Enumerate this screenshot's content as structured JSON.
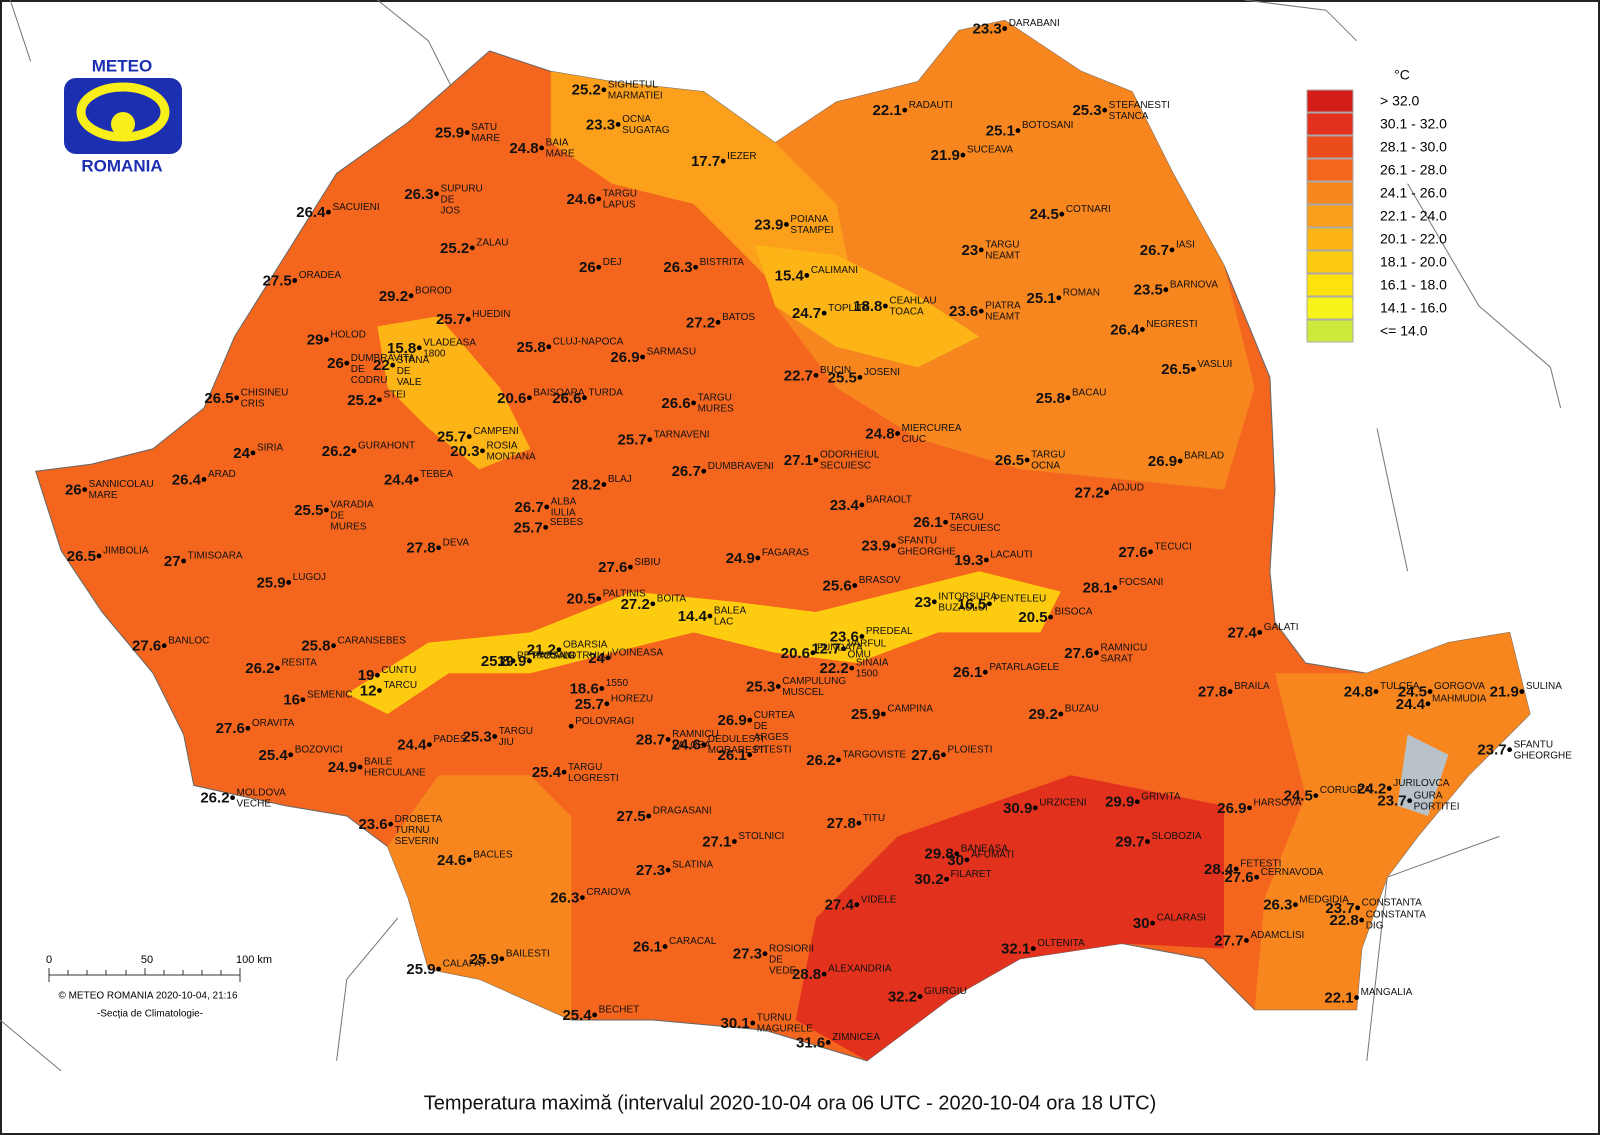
{
  "logo": {
    "top": "METEO",
    "bottom": "ROMANIA"
  },
  "legend": {
    "unit": "°C",
    "items": [
      {
        "label": "> 32.0",
        "color": "#d41c18"
      },
      {
        "label": "30.1 - 32.0",
        "color": "#e2311c"
      },
      {
        "label": "28.1 - 30.0",
        "color": "#ec4b1b"
      },
      {
        "label": "26.1 - 28.0",
        "color": "#f4661e"
      },
      {
        "label": "24.1 - 26.0",
        "color": "#f7861e"
      },
      {
        "label": "22.1 - 24.0",
        "color": "#fa9f1b"
      },
      {
        "label": "20.1 - 22.0",
        "color": "#fcb416"
      },
      {
        "label": "18.1 - 20.0",
        "color": "#fdcb10"
      },
      {
        "label": "16.1 - 18.0",
        "color": "#fde20b"
      },
      {
        "label": "14.1 - 16.0",
        "color": "#f8f41a"
      },
      {
        "label": "<= 14.0",
        "color": "#cbea3c"
      }
    ]
  },
  "scale_bar": {
    "labels": [
      "0",
      "50",
      "100 km"
    ]
  },
  "credit": {
    "line1": "© METEO ROMANIA 2020-10-04, 21:16",
    "line2": "-Secția de Climatologie-"
  },
  "title": "Temperatura maximă (intervalul 2020-10-04 ora 06 UTC - 2020-10-04 ora 18 UTC)",
  "stations": [
    {
      "name": [
        "DARABANI"
      ],
      "value": 23.3
    },
    {
      "name": [
        "SIGHETUL",
        "MARMATIEI"
      ],
      "value": 25.2
    },
    {
      "name": [
        "STEFANESTI",
        "STANCA"
      ],
      "value": 25.3
    },
    {
      "name": [
        "RADAUTI"
      ],
      "value": 22.1
    },
    {
      "name": [
        "SATU",
        "MARE"
      ],
      "value": 25.9
    },
    {
      "name": [
        "OCNA",
        "SUGATAG"
      ],
      "value": 23.3
    },
    {
      "name": [
        "BAIA",
        "MARE"
      ],
      "value": 24.8
    },
    {
      "name": [
        "BOTOSANI"
      ],
      "value": 25.1
    },
    {
      "name": [
        "IEZER"
      ],
      "value": 17.7
    },
    {
      "name": [
        "SUCEAVA"
      ],
      "value": 21.9
    },
    {
      "name": [
        "SUPURU",
        "DE",
        "JOS"
      ],
      "value": 26.3
    },
    {
      "name": [
        "TARGU",
        "LAPUS"
      ],
      "value": 24.6
    },
    {
      "name": [
        "SACUIENI"
      ],
      "value": 26.4
    },
    {
      "name": [
        "POIANA",
        "STAMPEI"
      ],
      "value": 23.9
    },
    {
      "name": [
        "COTNARI"
      ],
      "value": 24.5
    },
    {
      "name": [
        "ZALAU"
      ],
      "value": 25.2
    },
    {
      "name": [
        "DEJ"
      ],
      "value": 26
    },
    {
      "name": [
        "BISTRITA"
      ],
      "value": 26.3
    },
    {
      "name": [
        "TARGU",
        "NEAMT"
      ],
      "value": 23
    },
    {
      "name": [
        "IASI"
      ],
      "value": 26.7
    },
    {
      "name": [
        "ORADEA"
      ],
      "value": 27.5
    },
    {
      "name": [
        "CALIMANI"
      ],
      "value": 15.4
    },
    {
      "name": [
        "BOROD"
      ],
      "value": 29.2
    },
    {
      "name": [
        "BARNOVA"
      ],
      "value": 23.5
    },
    {
      "name": [
        "CEAHLAU",
        "TOACA"
      ],
      "value": 18.8
    },
    {
      "name": [
        "PIATRA",
        "NEAMT"
      ],
      "value": 23.6
    },
    {
      "name": [
        "ROMAN"
      ],
      "value": 25.1
    },
    {
      "name": [
        "HUEDIN"
      ],
      "value": 25.7
    },
    {
      "name": [
        "TOPLITA"
      ],
      "value": 24.7
    },
    {
      "name": [
        "BATOS"
      ],
      "value": 27.2
    },
    {
      "name": [
        "VLADEASA",
        "1800"
      ],
      "value": 15.8
    },
    {
      "name": [
        "HOLOD"
      ],
      "value": 29
    },
    {
      "name": [
        "NEGRESTI"
      ],
      "value": 26.4
    },
    {
      "name": [
        "CLUJ-NAPOCA"
      ],
      "value": 25.8
    },
    {
      "name": [
        "DUMBRAVITA",
        "DE",
        "CODRU"
      ],
      "value": 26
    },
    {
      "name": [
        "STANA",
        "DE",
        "VALE"
      ],
      "value": 22
    },
    {
      "name": [
        "SARMASU"
      ],
      "value": 26.9
    },
    {
      "name": [
        "BUCIN"
      ],
      "value": 22.7
    },
    {
      "name": [
        "JOSENI"
      ],
      "value": 25.5
    },
    {
      "name": [
        "VASLUI"
      ],
      "value": 26.5
    },
    {
      "name": [
        "CHISINEU",
        "CRIS"
      ],
      "value": 26.5
    },
    {
      "name": [
        "STEI"
      ],
      "value": 25.2
    },
    {
      "name": [
        "BAISOARA"
      ],
      "value": 20.6
    },
    {
      "name": [
        "TURDA"
      ],
      "value": 26.6
    },
    {
      "name": [
        "TARGU",
        "MURES"
      ],
      "value": 26.6
    },
    {
      "name": [
        "BACAU"
      ],
      "value": 25.8
    },
    {
      "name": [
        "SIRIA"
      ],
      "value": 24
    },
    {
      "name": [
        "GURAHONT"
      ],
      "value": 26.2
    },
    {
      "name": [
        "CAMPENI"
      ],
      "value": 25.7
    },
    {
      "name": [
        "ROSIA",
        "MONTANA"
      ],
      "value": 20.3
    },
    {
      "name": [
        "TARNAVENI"
      ],
      "value": 25.7
    },
    {
      "name": [
        "MIERCUREA",
        "CIUC"
      ],
      "value": 24.8
    },
    {
      "name": [
        "ODORHEIUL",
        "SECUIESC"
      ],
      "value": 27.1
    },
    {
      "name": [
        "TARGU",
        "OCNA"
      ],
      "value": 26.5
    },
    {
      "name": [
        "BARLAD"
      ],
      "value": 26.9
    },
    {
      "name": [
        "SANNICOLAU",
        "MARE"
      ],
      "value": 26
    },
    {
      "name": [
        "ARAD"
      ],
      "value": 26.4
    },
    {
      "name": [
        "TEBEA"
      ],
      "value": 24.4
    },
    {
      "name": [
        "DUMBRAVENI"
      ],
      "value": 26.7
    },
    {
      "name": [
        "BLAJ"
      ],
      "value": 28.2
    },
    {
      "name": [
        "ADJUD"
      ],
      "value": 27.2
    },
    {
      "name": [
        "VARADIA",
        "DE",
        "MURES"
      ],
      "value": 25.5
    },
    {
      "name": [
        "ALBA",
        "IULIA"
      ],
      "value": 26.7
    },
    {
      "name": [
        "SEBES"
      ],
      "value": 25.7
    },
    {
      "name": [
        "BARAOLT"
      ],
      "value": 23.4
    },
    {
      "name": [
        "TARGU",
        "SECUIESC"
      ],
      "value": 26.1
    },
    {
      "name": [
        "JIMBOLIA"
      ],
      "value": 26.5
    },
    {
      "name": [
        "TIMISOARA"
      ],
      "value": 27
    },
    {
      "name": [
        "DEVA"
      ],
      "value": 27.8
    },
    {
      "name": [
        "SFANTU",
        "GHEORGHE"
      ],
      "value": 23.9
    },
    {
      "name": [
        "TECUCI"
      ],
      "value": 27.6
    },
    {
      "name": [
        "SIBIU"
      ],
      "value": 27.6
    },
    {
      "name": [
        "FAGARAS"
      ],
      "value": 24.9
    },
    {
      "name": [
        "LACAUTI"
      ],
      "value": 19.3
    },
    {
      "name": [
        "LUGOJ"
      ],
      "value": 25.9
    },
    {
      "name": [
        "BRASOV"
      ],
      "value": 25.6
    },
    {
      "name": [
        "FOCSANI"
      ],
      "value": 28.1
    },
    {
      "name": [
        "PALTINIS"
      ],
      "value": 20.5
    },
    {
      "name": [
        "BOITA"
      ],
      "value": 27.2
    },
    {
      "name": [
        "BALEA",
        "LAC"
      ],
      "value": 14.4
    },
    {
      "name": [
        "INTORSURA",
        "BUZAULUI"
      ],
      "value": 23
    },
    {
      "name": [
        "PENTELEU"
      ],
      "value": 16.5
    },
    {
      "name": [
        "BISOCA"
      ],
      "value": 20.5
    },
    {
      "name": [
        "CARANSEBES"
      ],
      "value": 25.8
    },
    {
      "name": [
        "BANLOC"
      ],
      "value": 27.6
    },
    {
      "name": [
        "OBARSIA",
        "LOTRULUI"
      ],
      "value": 21.2
    },
    {
      "name": [
        "PETROSANI"
      ],
      "value": 25.8
    },
    {
      "name": [
        "PARANG"
      ],
      "value": 19.9
    },
    {
      "name": [
        "VOINEASA"
      ],
      "value": 24
    },
    {
      "name": [
        "VARFUL",
        "OMU"
      ],
      "value": 12.7
    },
    {
      "name": [
        "PREDEAL"
      ],
      "value": 23.6
    },
    {
      "name": [
        "FUNDATA"
      ],
      "value": 20.6
    },
    {
      "name": [
        "SINAIA",
        "1500"
      ],
      "value": 22.2
    },
    {
      "name": [
        "RESITA"
      ],
      "value": 26.2
    },
    {
      "name": [
        "PATARLAGELE"
      ],
      "value": 26.1
    },
    {
      "name": [
        "RAMNICU",
        "SARAT"
      ],
      "value": 27.6
    },
    {
      "name": [
        "GALATI"
      ],
      "value": 27.4
    },
    {
      "name": [
        "CUNTU"
      ],
      "value": 19
    },
    {
      "name": [
        "TARCU"
      ],
      "value": 12
    },
    {
      "name": [
        "SEMENIC"
      ],
      "value": 16
    },
    {
      "name": [
        "1550"
      ],
      "value": 18.6
    },
    {
      "name": [
        "HOREZU"
      ],
      "value": 25.7
    },
    {
      "name": [
        "CAMPULUNG",
        "MUSCEL"
      ],
      "value": 25.3
    },
    {
      "name": [
        "CURTEA",
        "DE",
        "ARGES"
      ],
      "value": 26.9
    },
    {
      "name": [
        "TULCEA"
      ],
      "value": 24.8
    },
    {
      "name": [
        "GORGOVA"
      ],
      "value": 24.5
    },
    {
      "name": [
        "MAHMUDIA"
      ],
      "value": 24.4
    },
    {
      "name": [
        "SULINA"
      ],
      "value": 21.9
    },
    {
      "name": [
        "BRAILA"
      ],
      "value": 27.8
    },
    {
      "name": [
        "BUZAU"
      ],
      "value": 29.2
    },
    {
      "name": [
        "ORAVITA"
      ],
      "value": 27.6
    },
    {
      "name": [
        "CAMPINA"
      ],
      "value": 25.9
    },
    {
      "name": [
        "RAMNICU",
        "VALCEA"
      ],
      "value": 28.7
    },
    {
      "name": [
        "DEDULESTI",
        "MORARESTI"
      ],
      "value": 24.6
    },
    {
      "name": [
        "PADES"
      ],
      "value": 24.4
    },
    {
      "name": [
        "TARGU",
        "JIU"
      ],
      "value": 25.3
    },
    {
      "name": [
        "BOZOVICI"
      ],
      "value": 25.4
    },
    {
      "name": [
        "BAILE",
        "HERCULANE"
      ],
      "value": 24.9
    },
    {
      "name": [
        "TARGOVISTE"
      ],
      "value": 26.2
    },
    {
      "name": [
        "PLOIESTI"
      ],
      "value": 27.6
    },
    {
      "name": [
        "SFANTU",
        "GHEORGHE"
      ],
      "value": 23.7
    },
    {
      "name": [
        "POLOVRAGI"
      ]
    },
    {
      "name": [
        "TARGU",
        "LOGRESTI"
      ],
      "value": 25.4
    },
    {
      "name": [
        "PITESTI"
      ],
      "value": 26.1
    },
    {
      "name": [
        "MOLDOVA",
        "VECHE"
      ],
      "value": 26.2
    },
    {
      "name": [
        "DROBETA",
        "TURNU",
        "SEVERIN"
      ],
      "value": 23.6
    },
    {
      "name": [
        "URZICENI"
      ],
      "value": 30.9
    },
    {
      "name": [
        "GRIVITA"
      ],
      "value": 29.9
    },
    {
      "name": [
        "HARSOVA"
      ],
      "value": 26.9
    },
    {
      "name": [
        "CORUGEA"
      ],
      "value": 24.5
    },
    {
      "name": [
        "JURILOVCA"
      ],
      "value": 24.2
    },
    {
      "name": [
        "GURA",
        "PORTITEI"
      ],
      "value": 23.7
    },
    {
      "name": [
        "DRAGASANI"
      ],
      "value": 27.5
    },
    {
      "name": [
        "TITU"
      ],
      "value": 27.8
    },
    {
      "name": [
        "SLOBOZIA"
      ],
      "value": 29.7
    },
    {
      "name": [
        "STOLNICI"
      ],
      "value": 27.1
    },
    {
      "name": [
        "BANEASA"
      ],
      "value": 29.8
    },
    {
      "name": [
        "AFUMATI"
      ],
      "value": 30
    },
    {
      "name": [
        "BACLES"
      ],
      "value": 24.6
    },
    {
      "name": [
        "FILARET"
      ],
      "value": 30.2
    },
    {
      "name": [
        "FETESTI"
      ],
      "value": 28.4
    },
    {
      "name": [
        "CERNAVODA"
      ],
      "value": 27.6
    },
    {
      "name": [
        "SLATINA"
      ],
      "value": 27.3
    },
    {
      "name": [
        "CRAIOVA"
      ],
      "value": 26.3
    },
    {
      "name": [
        "VIDELE"
      ],
      "value": 27.4
    },
    {
      "name": [
        "MEDGIDIA"
      ],
      "value": 26.3
    },
    {
      "name": [
        "CONSTANTA"
      ],
      "value": 23.7
    },
    {
      "name": [
        "CONSTANTA",
        "DIG"
      ],
      "value": 22.8
    },
    {
      "name": [
        "CALARASI"
      ],
      "value": 30
    },
    {
      "name": [
        "ADAMCLISI"
      ],
      "value": 27.7
    },
    {
      "name": [
        "CARACAL"
      ],
      "value": 26.1
    },
    {
      "name": [
        "ROSIORII",
        "DE",
        "VEDE"
      ],
      "value": 27.3
    },
    {
      "name": [
        "OLTENITA"
      ],
      "value": 32.1
    },
    {
      "name": [
        "CALAFAT"
      ],
      "value": 25.9
    },
    {
      "name": [
        "BAILESTI"
      ],
      "value": 25.9
    },
    {
      "name": [
        "ALEXANDRIA"
      ],
      "value": 28.8
    },
    {
      "name": [
        "GIURGIU"
      ],
      "value": 32.2
    },
    {
      "name": [
        "MANGALIA"
      ],
      "value": 22.1
    },
    {
      "name": [
        "BECHET"
      ],
      "value": 25.4
    },
    {
      "name": [
        "TURNU",
        "MAGURELE"
      ],
      "value": 30.1
    },
    {
      "name": [
        "ZIMNICEA"
      ],
      "value": 31.6
    }
  ]
}
